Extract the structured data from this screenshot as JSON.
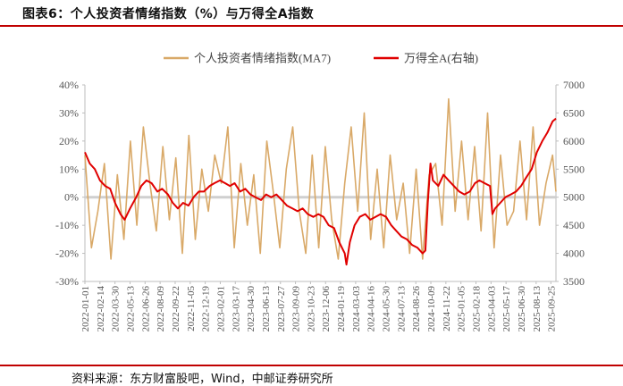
{
  "figure": {
    "title": "图表6：个人投资者情绪指数（%）与万得全A指数",
    "source": "资料来源：东方财富股吧，Wind，中邮证券研究所"
  },
  "colors": {
    "sentiment": "#d9a968",
    "index": "#e00000",
    "accent": "#c00000",
    "zero_line": "#cfcfcf",
    "axis": "#bdbdbd"
  },
  "chart_data": {
    "type": "line",
    "title": "",
    "legend": {
      "position": "top-center",
      "entries": [
        "个人投资者情绪指数(MA7)",
        "万得全A(右轴)"
      ]
    },
    "grid": false,
    "x_tick_labels": [
      "2022-01-01",
      "2022-02-14",
      "2022-03-30",
      "2022-05-13",
      "2022-06-26",
      "2022-08-09",
      "2022-09-22",
      "2022-11-05",
      "2022-12-19",
      "2023-02-01",
      "2023-03-17",
      "2023-04-30",
      "2023-06-13",
      "2023-07-27",
      "2023-09-09",
      "2023-10-23",
      "2023-12-06",
      "2024-01-19",
      "2024-03-03",
      "2024-04-16",
      "2024-05-30",
      "2024-07-13",
      "2024-08-26",
      "2024-10-09",
      "2024-11-22",
      "2025-01-05",
      "2025-02-18",
      "2025-04-03",
      "2025-05-17",
      "2025-06-30",
      "2025-08-13",
      "2025-09-25"
    ],
    "y_left": {
      "label": "",
      "min": -30,
      "max": 40,
      "ticks": [
        "-30%",
        "-20%",
        "-10%",
        "0%",
        "10%",
        "20%",
        "30%",
        "40%"
      ]
    },
    "y_right": {
      "label": "",
      "min": 3500,
      "max": 7000,
      "ticks": [
        "3500",
        "4000",
        "4500",
        "5000",
        "5500",
        "6000",
        "6500",
        "7000"
      ]
    },
    "series": [
      {
        "name": "个人投资者情绪指数(MA7)",
        "axis": "left",
        "x": [
          "2022-01-01",
          "2022-01-20",
          "2022-02-08",
          "2022-02-27",
          "2022-03-18",
          "2022-04-06",
          "2022-04-25",
          "2022-05-14",
          "2022-06-02",
          "2022-06-21",
          "2022-07-10",
          "2022-07-29",
          "2022-08-17",
          "2022-09-05",
          "2022-09-24",
          "2022-10-13",
          "2022-11-01",
          "2022-11-20",
          "2022-12-09",
          "2022-12-28",
          "2023-01-16",
          "2023-02-04",
          "2023-02-23",
          "2023-03-14",
          "2023-04-02",
          "2023-04-21",
          "2023-05-10",
          "2023-05-29",
          "2023-06-17",
          "2023-07-06",
          "2023-07-25",
          "2023-08-13",
          "2023-09-01",
          "2023-09-20",
          "2023-10-09",
          "2023-10-28",
          "2023-11-16",
          "2023-12-05",
          "2023-12-24",
          "2024-01-12",
          "2024-01-31",
          "2024-02-19",
          "2024-03-09",
          "2024-03-28",
          "2024-04-16",
          "2024-05-05",
          "2024-05-24",
          "2024-06-12",
          "2024-07-01",
          "2024-07-20",
          "2024-08-08",
          "2024-08-27",
          "2024-09-15",
          "2024-10-04",
          "2024-10-23",
          "2024-11-11",
          "2024-11-30",
          "2024-12-19",
          "2025-01-07",
          "2025-01-26",
          "2025-02-14",
          "2025-03-05",
          "2025-03-24",
          "2025-04-12",
          "2025-05-01",
          "2025-05-20",
          "2025-06-08",
          "2025-06-27",
          "2025-07-16",
          "2025-08-04",
          "2025-08-23",
          "2025-09-11",
          "2025-09-30",
          "2025-10-10"
        ],
        "values": [
          15,
          -18,
          -5,
          12,
          -22,
          8,
          -15,
          20,
          -10,
          25,
          5,
          -12,
          18,
          -8,
          14,
          -20,
          22,
          -15,
          10,
          -5,
          15,
          5,
          25,
          -18,
          12,
          -10,
          8,
          -20,
          20,
          2,
          -18,
          10,
          25,
          -5,
          -20,
          15,
          -18,
          18,
          -8,
          -22,
          5,
          25,
          -5,
          30,
          -15,
          10,
          -18,
          15,
          -8,
          5,
          -20,
          10,
          -22,
          8,
          12,
          -10,
          35,
          -5,
          20,
          -8,
          18,
          -12,
          30,
          -18,
          15,
          -10,
          -5,
          20,
          -8,
          25,
          -10,
          5,
          15,
          2
        ]
      },
      {
        "name": "万得全A(右轴)",
        "axis": "right",
        "x": [
          "2022-01-01",
          "2022-01-15",
          "2022-01-30",
          "2022-02-14",
          "2022-03-01",
          "2022-03-16",
          "2022-03-30",
          "2022-04-15",
          "2022-04-27",
          "2022-05-13",
          "2022-05-31",
          "2022-06-15",
          "2022-06-30",
          "2022-07-15",
          "2022-08-01",
          "2022-08-15",
          "2022-09-01",
          "2022-09-15",
          "2022-09-30",
          "2022-10-15",
          "2022-10-31",
          "2022-11-15",
          "2022-11-30",
          "2022-12-15",
          "2023-01-01",
          "2023-01-15",
          "2023-01-31",
          "2023-02-15",
          "2023-03-01",
          "2023-03-15",
          "2023-03-31",
          "2023-04-15",
          "2023-04-30",
          "2023-05-15",
          "2023-05-31",
          "2023-06-15",
          "2023-06-30",
          "2023-07-15",
          "2023-07-31",
          "2023-08-15",
          "2023-08-31",
          "2023-09-15",
          "2023-09-30",
          "2023-10-15",
          "2023-10-31",
          "2023-11-15",
          "2023-11-30",
          "2023-12-15",
          "2023-12-31",
          "2024-01-15",
          "2024-01-31",
          "2024-02-05",
          "2024-02-15",
          "2024-02-29",
          "2024-03-15",
          "2024-03-31",
          "2024-04-15",
          "2024-04-30",
          "2024-05-15",
          "2024-05-31",
          "2024-06-15",
          "2024-06-30",
          "2024-07-15",
          "2024-07-31",
          "2024-08-15",
          "2024-08-31",
          "2024-09-15",
          "2024-09-23",
          "2024-09-30",
          "2024-10-08",
          "2024-10-15",
          "2024-10-31",
          "2024-11-15",
          "2024-11-30",
          "2024-12-15",
          "2024-12-31",
          "2025-01-15",
          "2025-01-31",
          "2025-02-15",
          "2025-02-28",
          "2025-03-15",
          "2025-03-31",
          "2025-04-07",
          "2025-04-15",
          "2025-04-30",
          "2025-05-15",
          "2025-05-31",
          "2025-06-15",
          "2025-06-30",
          "2025-07-15",
          "2025-07-31",
          "2025-08-15",
          "2025-08-31",
          "2025-09-15",
          "2025-09-30",
          "2025-10-10"
        ],
        "values": [
          5800,
          5600,
          5500,
          5300,
          5200,
          5150,
          4900,
          4700,
          4600,
          4800,
          5000,
          5200,
          5300,
          5250,
          5100,
          5150,
          5050,
          4900,
          4800,
          4900,
          4850,
          5000,
          5100,
          5100,
          5200,
          5250,
          5300,
          5250,
          5200,
          5250,
          5100,
          5150,
          5050,
          5000,
          4950,
          5050,
          5000,
          5050,
          4950,
          4850,
          4800,
          4750,
          4800,
          4700,
          4650,
          4700,
          4650,
          4500,
          4450,
          4200,
          4000,
          3800,
          4200,
          4500,
          4650,
          4700,
          4600,
          4650,
          4700,
          4650,
          4500,
          4400,
          4300,
          4250,
          4150,
          4100,
          4000,
          4050,
          4900,
          5600,
          5300,
          5200,
          5400,
          5300,
          5200,
          5100,
          5050,
          5100,
          5250,
          5300,
          5250,
          5200,
          4700,
          4800,
          4900,
          5000,
          5050,
          5100,
          5200,
          5350,
          5500,
          5800,
          6000,
          6150,
          6350,
          6400
        ]
      }
    ]
  }
}
